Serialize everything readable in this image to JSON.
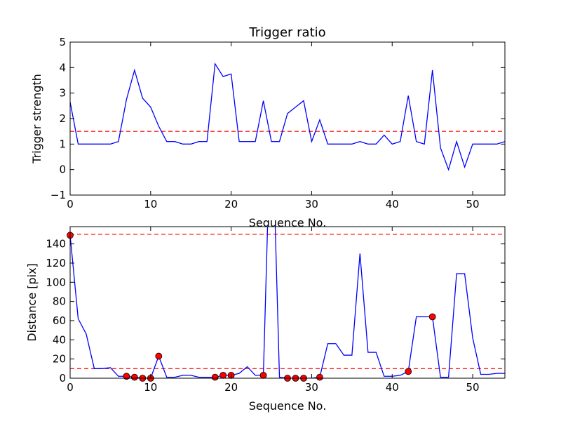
{
  "chart_data": [
    {
      "type": "line",
      "title": "Trigger ratio",
      "xlabel": "Sequence No.",
      "ylabel": "Trigger strength",
      "xlim": [
        0,
        54
      ],
      "ylim": [
        -1,
        5
      ],
      "xticks": [
        0,
        10,
        20,
        30,
        40,
        50
      ],
      "yticks": [
        -1,
        0,
        1,
        2,
        3,
        4,
        5
      ],
      "xtick_labels": [
        "0",
        "10",
        "20",
        "30",
        "40",
        "50"
      ],
      "ytick_labels": [
        "−1",
        "0",
        "1",
        "2",
        "3",
        "4",
        "5"
      ],
      "grid": false,
      "series": [
        {
          "color": "#0000ff",
          "x": [
            0,
            1,
            2,
            3,
            4,
            5,
            6,
            7,
            8,
            9,
            10,
            11,
            12,
            13,
            14,
            15,
            16,
            17,
            18,
            19,
            20,
            21,
            22,
            23,
            24,
            25,
            26,
            27,
            28,
            29,
            30,
            31,
            32,
            33,
            34,
            35,
            36,
            37,
            38,
            39,
            40,
            41,
            42,
            43,
            44,
            45,
            46,
            47,
            48,
            49,
            50,
            51,
            52,
            53,
            54
          ],
          "y": [
            2.65,
            1.0,
            1.0,
            1.0,
            1.0,
            1.0,
            1.1,
            2.75,
            3.9,
            2.8,
            2.45,
            1.7,
            1.1,
            1.1,
            1.0,
            1.0,
            1.1,
            1.1,
            4.15,
            3.65,
            3.75,
            1.1,
            1.1,
            1.1,
            2.7,
            1.1,
            1.1,
            2.2,
            2.45,
            2.7,
            1.1,
            1.95,
            1.0,
            1.0,
            1.0,
            1.0,
            1.1,
            1.0,
            1.0,
            1.35,
            1.0,
            1.1,
            2.9,
            1.1,
            1.0,
            3.9,
            0.85,
            0.0,
            1.1,
            0.1,
            1.0,
            1.0,
            1.0,
            1.0,
            1.1
          ]
        }
      ],
      "hlines": [
        {
          "y": 1.5,
          "color": "#ff0000",
          "style": "dashed"
        }
      ]
    },
    {
      "type": "line",
      "title": "",
      "xlabel": "Sequence No.",
      "ylabel": "Distance [pix]",
      "xlim": [
        0,
        54
      ],
      "ylim": [
        0,
        158
      ],
      "xticks": [
        0,
        10,
        20,
        30,
        40,
        50
      ],
      "yticks": [
        0,
        20,
        40,
        60,
        80,
        100,
        120,
        140
      ],
      "xtick_labels": [
        "0",
        "10",
        "20",
        "30",
        "40",
        "50"
      ],
      "ytick_labels": [
        "0",
        "20",
        "40",
        "60",
        "80",
        "100",
        "120",
        "140"
      ],
      "grid": false,
      "series": [
        {
          "color": "#0000ff",
          "x": [
            0,
            1,
            2,
            3,
            4,
            5,
            6,
            7,
            8,
            9,
            10,
            11,
            12,
            13,
            14,
            15,
            16,
            17,
            18,
            19,
            20,
            21,
            22,
            23,
            24,
            25,
            26,
            27,
            28,
            29,
            30,
            31,
            32,
            33,
            34,
            35,
            36,
            37,
            38,
            39,
            40,
            41,
            42,
            43,
            44,
            45,
            46,
            47,
            48,
            49,
            50,
            51,
            52,
            53,
            54
          ],
          "y": [
            149,
            62,
            46,
            10,
            10,
            11,
            2,
            2,
            1,
            0,
            0,
            23,
            1,
            1,
            3,
            3,
            1,
            1,
            1,
            3,
            3,
            5,
            12,
            3,
            3,
            300,
            1,
            0,
            0,
            0,
            0,
            1,
            36,
            36,
            24,
            24,
            130,
            27,
            27,
            2,
            2,
            3,
            7,
            64,
            64,
            64,
            1,
            1,
            109,
            109,
            42,
            4,
            4,
            5,
            5
          ]
        },
        {
          "color": "#ff0000",
          "marker": "circle",
          "x": [
            0,
            7,
            8,
            9,
            10,
            11,
            18,
            19,
            20,
            24,
            27,
            28,
            29,
            31,
            42,
            45
          ],
          "y": [
            149,
            2,
            1,
            0,
            0,
            23,
            1,
            3,
            3,
            3,
            0,
            0,
            0,
            1,
            7,
            64
          ]
        }
      ],
      "hlines": [
        {
          "y": 150,
          "color": "#ff0000",
          "style": "dashed"
        },
        {
          "y": 10,
          "color": "#ff0000",
          "style": "dashed"
        }
      ]
    }
  ]
}
